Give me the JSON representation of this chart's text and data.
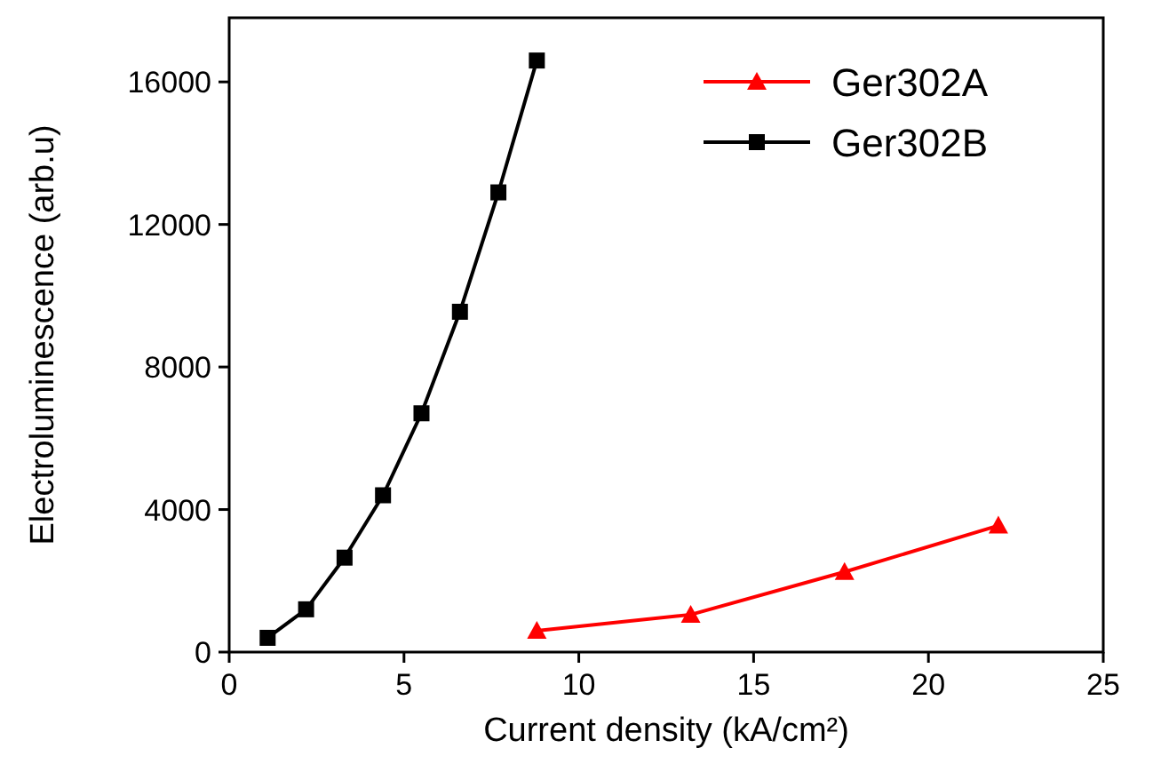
{
  "chart_data": {
    "type": "line",
    "xlabel": "Current density (kA/cm²)",
    "ylabel": "Electroluminescence (arb.u)",
    "xlim": [
      0,
      25
    ],
    "xticks": [
      0,
      5,
      10,
      15,
      20,
      25
    ],
    "ylim": [
      0,
      17800
    ],
    "yticks": [
      0,
      4000,
      8000,
      12000,
      16000
    ],
    "grid": false,
    "legend": "top right",
    "line_style": "solid",
    "series": [
      {
        "name": "Ger302A",
        "color": "#ff0000",
        "marker": "triangle",
        "x": [
          8.8,
          13.2,
          17.6,
          22
        ],
        "values": [
          600,
          1050,
          2250,
          3550
        ]
      },
      {
        "name": "Ger302B",
        "color": "#000000",
        "marker": "square",
        "x": [
          1.1,
          2.2,
          3.3,
          4.4,
          5.5,
          6.6,
          7.7,
          8.8
        ],
        "values": [
          400,
          1200,
          2650,
          4400,
          6700,
          9550,
          12900,
          16600
        ]
      }
    ]
  }
}
